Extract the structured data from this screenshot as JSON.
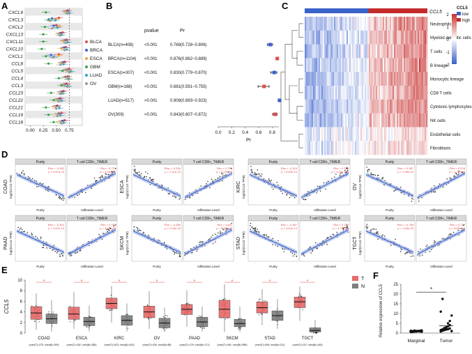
{
  "colors": {
    "red": "#e24a4a",
    "blue": "#3a5fcd",
    "heat_low": "#3b5fc7",
    "heat_high": "#c9302c",
    "box_red": "#e86a6a",
    "box_gray": "#7f7f7f",
    "dot": "#444444"
  },
  "panels": {
    "A": "A",
    "B": "B",
    "C": "C",
    "D": "D",
    "E": "E",
    "F": "F"
  },
  "chart_data": [
    {
      "type": "scatter",
      "panel": "A",
      "title": "",
      "genes": [
        "CXCL9",
        "CXCL3",
        "CXCL2",
        "CXCL13",
        "CXCL11",
        "CXCL10",
        "CXCL1",
        "CCL8",
        "CCL5",
        "CCL4",
        "CCL3",
        "CCL23",
        "CCL22",
        "CCL21",
        "CCL19",
        "CCL18"
      ],
      "legend": [
        "BLCA",
        "BRCA",
        "ESCA",
        "GBM",
        "LUAD",
        "OV"
      ],
      "legend_colors": [
        "#e24a4a",
        "#3a5fcd",
        "#e8a23c",
        "#3aa14a",
        "#2aa6c8",
        "#9a9a9a"
      ],
      "xticks": [
        "0.00",
        "0.25",
        "0.50",
        "0.75"
      ],
      "xlim": [
        -0.1,
        1.0
      ],
      "series": [
        {
          "name": "BLCA",
          "values": [
            0.72,
            0.55,
            0.5,
            0.62,
            0.7,
            0.68,
            0.55,
            0.66,
            0.74,
            0.72,
            0.7,
            0.64,
            0.58,
            0.52,
            0.6,
            0.66
          ]
        },
        {
          "name": "BRCA",
          "values": [
            0.7,
            0.42,
            0.45,
            0.58,
            0.66,
            0.65,
            0.4,
            0.62,
            0.71,
            0.68,
            0.66,
            0.6,
            0.55,
            0.5,
            0.55,
            0.62
          ]
        },
        {
          "name": "ESCA",
          "values": [
            0.68,
            0.5,
            0.56,
            0.55,
            0.64,
            0.6,
            0.55,
            0.6,
            0.72,
            0.7,
            0.65,
            0.58,
            0.52,
            0.48,
            0.52,
            0.58
          ]
        },
        {
          "name": "GBM",
          "values": [
            0.3,
            0.35,
            0.28,
            0.25,
            0.25,
            0.22,
            0.3,
            0.35,
            0.62,
            0.55,
            0.6,
            0.4,
            0.45,
            0.3,
            0.35,
            0.45
          ]
        },
        {
          "name": "LUAD",
          "values": [
            0.74,
            0.48,
            0.52,
            0.6,
            0.72,
            0.7,
            0.45,
            0.64,
            0.78,
            0.74,
            0.72,
            0.62,
            0.6,
            0.56,
            0.58,
            0.64
          ]
        },
        {
          "name": "OV",
          "values": [
            0.71,
            0.38,
            0.42,
            0.57,
            0.68,
            0.66,
            0.44,
            0.58,
            0.75,
            0.73,
            0.71,
            0.58,
            0.55,
            0.5,
            0.52,
            0.6
          ]
        }
      ]
    },
    {
      "type": "forest",
      "panel": "B",
      "col_pvalue": "pvalue",
      "col_pr": "Pr",
      "rows": [
        {
          "label": "BLCA(n=408)",
          "p": "<0.001",
          "pr_text": "0.769(0.728~0.806)",
          "est": 0.769,
          "lo": 0.728,
          "hi": 0.806
        },
        {
          "label": "BRCA(n=1104)",
          "p": "<0.001",
          "pr_text": "0.876(0.862~0.889)",
          "est": 0.876,
          "lo": 0.862,
          "hi": 0.889
        },
        {
          "label": "ESCA(n=307)",
          "p": "<0.001",
          "pr_text": "0.830(0.779~0.870)",
          "est": 0.83,
          "lo": 0.779,
          "hi": 0.87
        },
        {
          "label": "GBM(n=168)",
          "p": "<0.001",
          "pr_text": "0.681(0.591~0.755)",
          "est": 0.681,
          "lo": 0.591,
          "hi": 0.755
        },
        {
          "label": "LUAD(n=517)",
          "p": "<0.001",
          "pr_text": "0.909(0.893~0.923)",
          "est": 0.909,
          "lo": 0.893,
          "hi": 0.923
        },
        {
          "label": "OV(309)",
          "p": "<0.001",
          "pr_text": "0.843(0.807~0.872)",
          "est": 0.843,
          "lo": 0.807,
          "hi": 0.872
        }
      ],
      "xticks": [
        "0.0",
        "0.2",
        "0.4",
        "0.6",
        "0.8"
      ],
      "xlim": [
        0,
        0.9
      ],
      "xlabel": "Pr"
    },
    {
      "type": "heatmap",
      "panel": "C",
      "top_annotation": "CCL5",
      "legend_title": "CCL5",
      "legend_low": "low",
      "legend_high": "high",
      "scale_ticks": [
        "2",
        "1",
        "0",
        "-1",
        "-2"
      ],
      "rows": [
        "Neutrophils",
        "Myeloid dendritic cells",
        "T cells",
        "B lineage",
        "Monocytic lineage",
        "CD8 T cells",
        "Cytotoxic lymphocytes",
        "NK cells",
        "Endothelial cells",
        "Fibroblasts"
      ]
    },
    {
      "type": "scatter",
      "panel": "D",
      "facet_purity": "Purity",
      "facet_tcell": "T cell CD8+_TIMER",
      "xlabel_inf": "Infiltration Level",
      "xlabel_pur": "Purity",
      "ylabel": "log2(CCL5 TPM)",
      "cancers": [
        {
          "name": "COAD",
          "rho_p": "Rho = -0.452\np = 5.67e-23",
          "rho_t": "Rho = 0.727\np = 4.94e-67"
        },
        {
          "name": "ESCA",
          "rho_p": "Rho = -0.526\np = 7.41e-15",
          "rho_t": "Rho = 0.750\np = 6.19e-29"
        },
        {
          "name": "KIRC",
          "rho_p": "Rho = -0.319\np = 5.60e-14",
          "rho_t": "Rho = 0.786\np = 1.25e-109"
        },
        {
          "name": "OV",
          "rho_p": "Rho = -0.367\np = 1.95e-02",
          "rho_t": "Rho = 0.578\np = 1.76e-36"
        },
        {
          "name": "PAAD",
          "rho_p": "Rho = -0.402\np = 3.67e-13",
          "rho_t": "Rho = 0.762\np = 4.93e-36"
        },
        {
          "name": "SKCM",
          "rho_p": "Rho = -0.389\np = 2.04e-18",
          "rho_t": "Rho = 0.811\np = 7.32e-07"
        },
        {
          "name": "STAD",
          "rho_p": "Rho = -0.367\np = 8.51e-14",
          "rho_t": "Rho = 0.775\np = 1.76e-65"
        },
        {
          "name": "TGCT",
          "rho_p": "Rho = -0.758\np = 1.69e-29",
          "rho_t": "Rho = 0.717\np = 8.55e-24"
        }
      ]
    },
    {
      "type": "box",
      "panel": "E",
      "ylabel": "CCL5",
      "yticks": [
        "0",
        "2",
        "4",
        "6",
        "8",
        "10"
      ],
      "ylim": [
        0,
        10
      ],
      "legend": [
        "T",
        "N"
      ],
      "categories": [
        "COAD",
        "ESCA",
        "KIRC",
        "OV",
        "PAAD",
        "SKCM",
        "STAD",
        "TGCT"
      ],
      "counts": [
        "(num(T)=275; num(N)=349)",
        "(num(T)=182; num(N)=286)",
        "(num(T)=523; num(N)=100)",
        "(num(T)=426; num(N)=88)",
        "(num(T)=179; num(N)=171)",
        "(num(T)=461; num(N)=558)",
        "(num(T)=408; num(N)=211)",
        "(num(T)=137; num(N)=165)"
      ],
      "tumor": [
        {
          "q1": 2.6,
          "med": 3.8,
          "q3": 5.0,
          "lo": 0.6,
          "hi": 7.5
        },
        {
          "q1": 2.6,
          "med": 3.6,
          "q3": 4.9,
          "lo": 0.8,
          "hi": 7.8
        },
        {
          "q1": 4.6,
          "med": 5.6,
          "q3": 6.6,
          "lo": 2.0,
          "hi": 8.9
        },
        {
          "q1": 2.9,
          "med": 4.0,
          "q3": 5.1,
          "lo": 0.8,
          "hi": 7.9
        },
        {
          "q1": 3.5,
          "med": 4.5,
          "q3": 5.4,
          "lo": 1.2,
          "hi": 8.1
        },
        {
          "q1": 2.9,
          "med": 4.5,
          "q3": 6.2,
          "lo": 0.2,
          "hi": 9.2
        },
        {
          "q1": 3.8,
          "med": 4.8,
          "q3": 5.9,
          "lo": 1.5,
          "hi": 8.3
        },
        {
          "q1": 4.8,
          "med": 5.9,
          "q3": 6.8,
          "lo": 2.3,
          "hi": 8.8
        }
      ],
      "normal": [
        {
          "q1": 1.8,
          "med": 2.7,
          "q3": 3.6,
          "lo": 0.3,
          "hi": 6.2
        },
        {
          "q1": 1.4,
          "med": 2.2,
          "q3": 3.0,
          "lo": 0.3,
          "hi": 5.2
        },
        {
          "q1": 1.5,
          "med": 2.4,
          "q3": 3.3,
          "lo": 0.3,
          "hi": 5.6
        },
        {
          "q1": 1.0,
          "med": 1.9,
          "q3": 2.8,
          "lo": 0.2,
          "hi": 4.8
        },
        {
          "q1": 1.2,
          "med": 2.1,
          "q3": 3.0,
          "lo": 0.3,
          "hi": 5.0
        },
        {
          "q1": 1.2,
          "med": 1.8,
          "q3": 2.6,
          "lo": 0.2,
          "hi": 5.0
        },
        {
          "q1": 2.4,
          "med": 3.3,
          "q3": 4.2,
          "lo": 0.8,
          "hi": 6.4
        },
        {
          "q1": 0.2,
          "med": 0.5,
          "q3": 1.0,
          "lo": 0.0,
          "hi": 2.5
        }
      ],
      "star": "*"
    },
    {
      "type": "scatter",
      "panel": "F",
      "ylabel": "Relative expression of CCL5",
      "categories": [
        "Marginal",
        "Tumor"
      ],
      "yticks": [
        "0",
        "5",
        "10",
        "15",
        "20",
        "25"
      ],
      "ylim": [
        0,
        25
      ],
      "marginal": [
        0.6,
        0.8,
        0.9,
        1.0,
        1.1,
        1.2,
        0.7,
        0.9,
        1.0,
        1.3,
        0.8,
        1.1,
        0.9,
        1.0,
        1.2,
        0.6,
        0.8,
        1.1,
        1.0,
        0.9,
        1.4,
        0.7
      ],
      "tumor": [
        0.8,
        1.2,
        1.5,
        1.8,
        2.0,
        2.4,
        1.0,
        1.3,
        1.7,
        2.2,
        2.8,
        3.5,
        4.1,
        1.1,
        1.6,
        2.0,
        2.6,
        3.0,
        5.0,
        6.2,
        9.0,
        11.0,
        17.5
      ],
      "sig": "*"
    }
  ]
}
